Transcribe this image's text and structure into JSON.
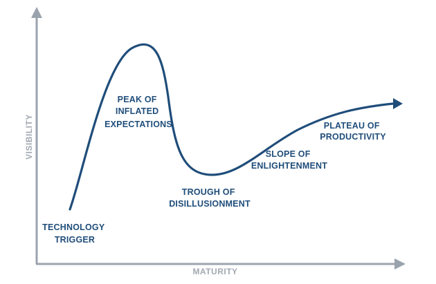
{
  "colors": {
    "curve": "#1f4d7a",
    "labels": "#1f4d7a",
    "axes": "#9aa3ad",
    "axis_labels": "#a2a9b1"
  },
  "axes": {
    "x_label": "MATURITY",
    "y_label": "VISIBILITY"
  },
  "phases": [
    {
      "line1": "TECHNOLOGY",
      "line2": "TRIGGER"
    },
    {
      "line1": "PEAK OF",
      "line2": "INFLATED",
      "line3": "EXPECTATIONS"
    },
    {
      "line1": "TROUGH OF",
      "line2": "DISILLUSIONMENT"
    },
    {
      "line1": "SLOPE OF",
      "line2": "ENLIGHTENMENT"
    },
    {
      "line1": "PLATEAU OF",
      "line2": "PRODUCTIVITY"
    }
  ]
}
